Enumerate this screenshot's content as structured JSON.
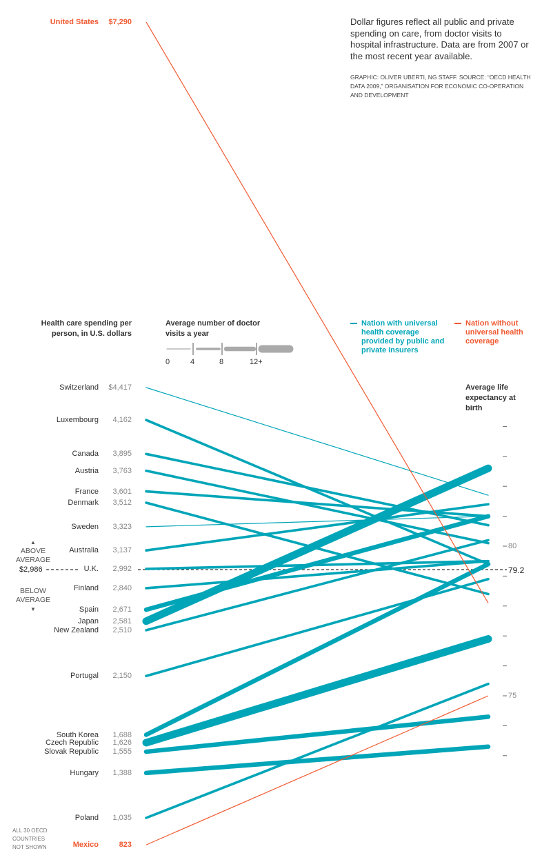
{
  "note": {
    "text": "Dollar figures reflect all public and private spending on care, from doctor visits to hospital infrastructure. Data are from 2007 or the most recent year available.",
    "credit": "GRAPHIC: OLIVER UBERTI, NG STAFF. SOURCE: “OECD HEALTH DATA 2009,” ORGANISATION FOR ECONOMIC CO-OPERATION AND DEVELOPMENT"
  },
  "colors": {
    "universal": "#00a5b8",
    "non_universal": "#f05a32",
    "text": "#333333"
  },
  "chart_data": {
    "type": "slope",
    "left_axis_label": "Health care spending per person, in U.S. dollars",
    "right_axis_label": "Average life expectancy at birth",
    "width_legend": {
      "title": "Average number of doctor visits a year",
      "ticks": [
        "0",
        "4",
        "8",
        "12+"
      ]
    },
    "legend": [
      {
        "label": "Nation with universal health coverage provided by public and private insurers",
        "color": "#00a5b8"
      },
      {
        "label": "Nation without universal health coverage",
        "color": "#f05a32"
      }
    ],
    "average": {
      "spending_label": "$2,986",
      "life_expectancy_label": "79.2",
      "spending": 2986,
      "life_expectancy": 79.2,
      "above_label": "ABOVE AVERAGE",
      "below_label": "BELOW AVERAGE"
    },
    "right_ticks": [
      84,
      83,
      82,
      81,
      80,
      79,
      78,
      77,
      76,
      75,
      74,
      73
    ],
    "right_tick_labels": {
      "80": "80",
      "75": "75"
    },
    "footnote": "ALL 30 OECD COUNTRIES NOT SHOWN",
    "countries": [
      {
        "name": "United States",
        "spending": 7290,
        "spending_label": "$7,290",
        "life_expectancy": 78.1,
        "visits": 3.8,
        "universal": false
      },
      {
        "name": "Switzerland",
        "spending": 4417,
        "spending_label": "$4,417",
        "life_expectancy": 81.7,
        "visits": 3.9,
        "universal": true
      },
      {
        "name": "Luxembourg",
        "spending": 4162,
        "spending_label": "4,162",
        "life_expectancy": 79.4,
        "visits": 6.1,
        "universal": true
      },
      {
        "name": "Canada",
        "spending": 3895,
        "spending_label": "3,895",
        "life_expectancy": 80.7,
        "visits": 5.8,
        "universal": true
      },
      {
        "name": "Austria",
        "spending": 3763,
        "spending_label": "3,763",
        "life_expectancy": 80.1,
        "visits": 6.7,
        "universal": true
      },
      {
        "name": "France",
        "spending": 3601,
        "spending_label": "3,601",
        "life_expectancy": 81.0,
        "visits": 6.3,
        "universal": true
      },
      {
        "name": "Denmark",
        "spending": 3512,
        "spending_label": "3,512",
        "life_expectancy": 78.4,
        "visits": 7.5,
        "universal": true
      },
      {
        "name": "Sweden",
        "spending": 3323,
        "spending_label": "3,323",
        "life_expectancy": 81.0,
        "visits": 2.8,
        "universal": true
      },
      {
        "name": "Australia",
        "spending": 3137,
        "spending_label": "3,137",
        "life_expectancy": 81.4,
        "visits": 6.3,
        "universal": true
      },
      {
        "name": "U.K.",
        "spending": 2992,
        "spending_label": "2,992",
        "life_expectancy": 79.5,
        "visits": 5.1,
        "universal": true
      },
      {
        "name": "Finland",
        "spending": 2840,
        "spending_label": "2,840",
        "life_expectancy": 79.5,
        "visits": 4.2,
        "universal": true
      },
      {
        "name": "Spain",
        "spending": 2671,
        "spending_label": "2,671",
        "life_expectancy": 81.0,
        "visits": 8.1,
        "universal": true
      },
      {
        "name": "Japan",
        "spending": 2581,
        "spending_label": "2,581",
        "life_expectancy": 82.6,
        "visits": 13.6,
        "universal": true
      },
      {
        "name": "New Zealand",
        "spending": 2510,
        "spending_label": "2,510",
        "life_expectancy": 80.2,
        "visits": 4.3,
        "universal": true
      },
      {
        "name": "Portugal",
        "spending": 2150,
        "spending_label": "2,150",
        "life_expectancy": 78.9,
        "visits": 5.8,
        "universal": true
      },
      {
        "name": "South Korea",
        "spending": 1688,
        "spending_label": "1,688",
        "life_expectancy": 79.4,
        "visits": 11.8,
        "universal": true
      },
      {
        "name": "Czech Republic",
        "spending": 1626,
        "spending_label": "1,626",
        "life_expectancy": 76.9,
        "visits": 12.9,
        "universal": true
      },
      {
        "name": "Slovak Republic",
        "spending": 1555,
        "spending_label": "1,555",
        "life_expectancy": 74.3,
        "visits": 11.2,
        "universal": true
      },
      {
        "name": "Hungary",
        "spending": 1388,
        "spending_label": "1,388",
        "life_expectancy": 73.3,
        "visits": 11.5,
        "universal": true
      },
      {
        "name": "Poland",
        "spending": 1035,
        "spending_label": "1,035",
        "life_expectancy": 75.4,
        "visits": 6.6,
        "universal": true
      },
      {
        "name": "Mexico",
        "spending": 823,
        "spending_label": "823",
        "life_expectancy": 75.0,
        "visits": 2.5,
        "universal": false
      }
    ]
  }
}
